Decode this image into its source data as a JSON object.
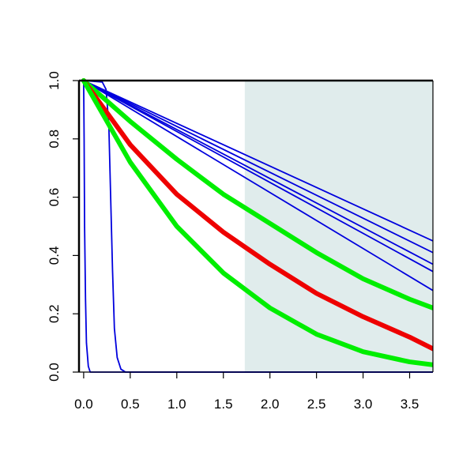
{
  "chart_data": {
    "type": "line",
    "title": "",
    "xlabel": "",
    "ylabel": "",
    "xlim": [
      -0.05,
      3.75
    ],
    "ylim": [
      0.0,
      1.0
    ],
    "x_ticks": [
      0.0,
      0.5,
      1.0,
      1.5,
      2.0,
      2.5,
      3.0,
      3.5
    ],
    "x_tick_labels": [
      "0.0",
      "0.5",
      "1.0",
      "1.5",
      "2.0",
      "2.5",
      "3.0",
      "3.5"
    ],
    "y_ticks": [
      0.0,
      0.2,
      0.4,
      0.6,
      0.8,
      1.0
    ],
    "y_tick_labels": [
      "0.0",
      "0.2",
      "0.4",
      "0.6",
      "0.8",
      "1.0"
    ],
    "grid": false,
    "legend": "none",
    "shaded_region": {
      "x_from": 1.73,
      "x_to": 3.75,
      "color": "#e0ecec"
    },
    "series": [
      {
        "color": "#0000dd",
        "width": "thin",
        "points": [
          [
            0.0,
            1.0
          ],
          [
            0.005,
            0.8
          ],
          [
            0.01,
            0.5
          ],
          [
            0.02,
            0.25
          ],
          [
            0.03,
            0.1
          ],
          [
            0.05,
            0.02
          ],
          [
            0.07,
            0.0
          ],
          [
            3.75,
            0.0
          ]
        ]
      },
      {
        "color": "#0000dd",
        "width": "thin",
        "points": [
          [
            0.0,
            1.0
          ],
          [
            0.2,
            0.995
          ],
          [
            0.24,
            0.97
          ],
          [
            0.27,
            0.85
          ],
          [
            0.29,
            0.6
          ],
          [
            0.31,
            0.35
          ],
          [
            0.33,
            0.15
          ],
          [
            0.36,
            0.05
          ],
          [
            0.4,
            0.01
          ],
          [
            0.45,
            0.0
          ],
          [
            3.75,
            0.0
          ]
        ]
      },
      {
        "color": "#0000dd",
        "width": "thin",
        "points": [
          [
            0.0,
            1.0
          ],
          [
            3.75,
            0.45
          ]
        ]
      },
      {
        "color": "#0000dd",
        "width": "thin",
        "points": [
          [
            0.0,
            1.0
          ],
          [
            3.75,
            0.41
          ]
        ]
      },
      {
        "color": "#0000dd",
        "width": "thin",
        "points": [
          [
            0.0,
            1.0
          ],
          [
            3.75,
            0.37
          ]
        ]
      },
      {
        "color": "#0000dd",
        "width": "thin",
        "points": [
          [
            0.0,
            1.0
          ],
          [
            3.75,
            0.345
          ]
        ]
      },
      {
        "color": "#0000dd",
        "width": "thin",
        "points": [
          [
            0.0,
            1.0
          ],
          [
            3.75,
            0.28
          ]
        ]
      },
      {
        "color": "#00ee00",
        "width": "thick",
        "points": [
          [
            0.0,
            1.0
          ],
          [
            0.5,
            0.86
          ],
          [
            1.0,
            0.73
          ],
          [
            1.5,
            0.61
          ],
          [
            2.0,
            0.51
          ],
          [
            2.5,
            0.41
          ],
          [
            3.0,
            0.32
          ],
          [
            3.5,
            0.25
          ],
          [
            3.75,
            0.22
          ]
        ]
      },
      {
        "color": "#ee0000",
        "width": "thick",
        "points": [
          [
            0.0,
            1.0
          ],
          [
            0.5,
            0.78
          ],
          [
            1.0,
            0.61
          ],
          [
            1.5,
            0.48
          ],
          [
            2.0,
            0.37
          ],
          [
            2.5,
            0.27
          ],
          [
            3.0,
            0.19
          ],
          [
            3.5,
            0.12
          ],
          [
            3.75,
            0.08
          ]
        ]
      },
      {
        "color": "#00ee00",
        "width": "thick",
        "points": [
          [
            0.0,
            1.0
          ],
          [
            0.5,
            0.72
          ],
          [
            1.0,
            0.5
          ],
          [
            1.5,
            0.34
          ],
          [
            2.0,
            0.22
          ],
          [
            2.5,
            0.13
          ],
          [
            3.0,
            0.07
          ],
          [
            3.5,
            0.035
          ],
          [
            3.75,
            0.025
          ]
        ]
      }
    ]
  }
}
